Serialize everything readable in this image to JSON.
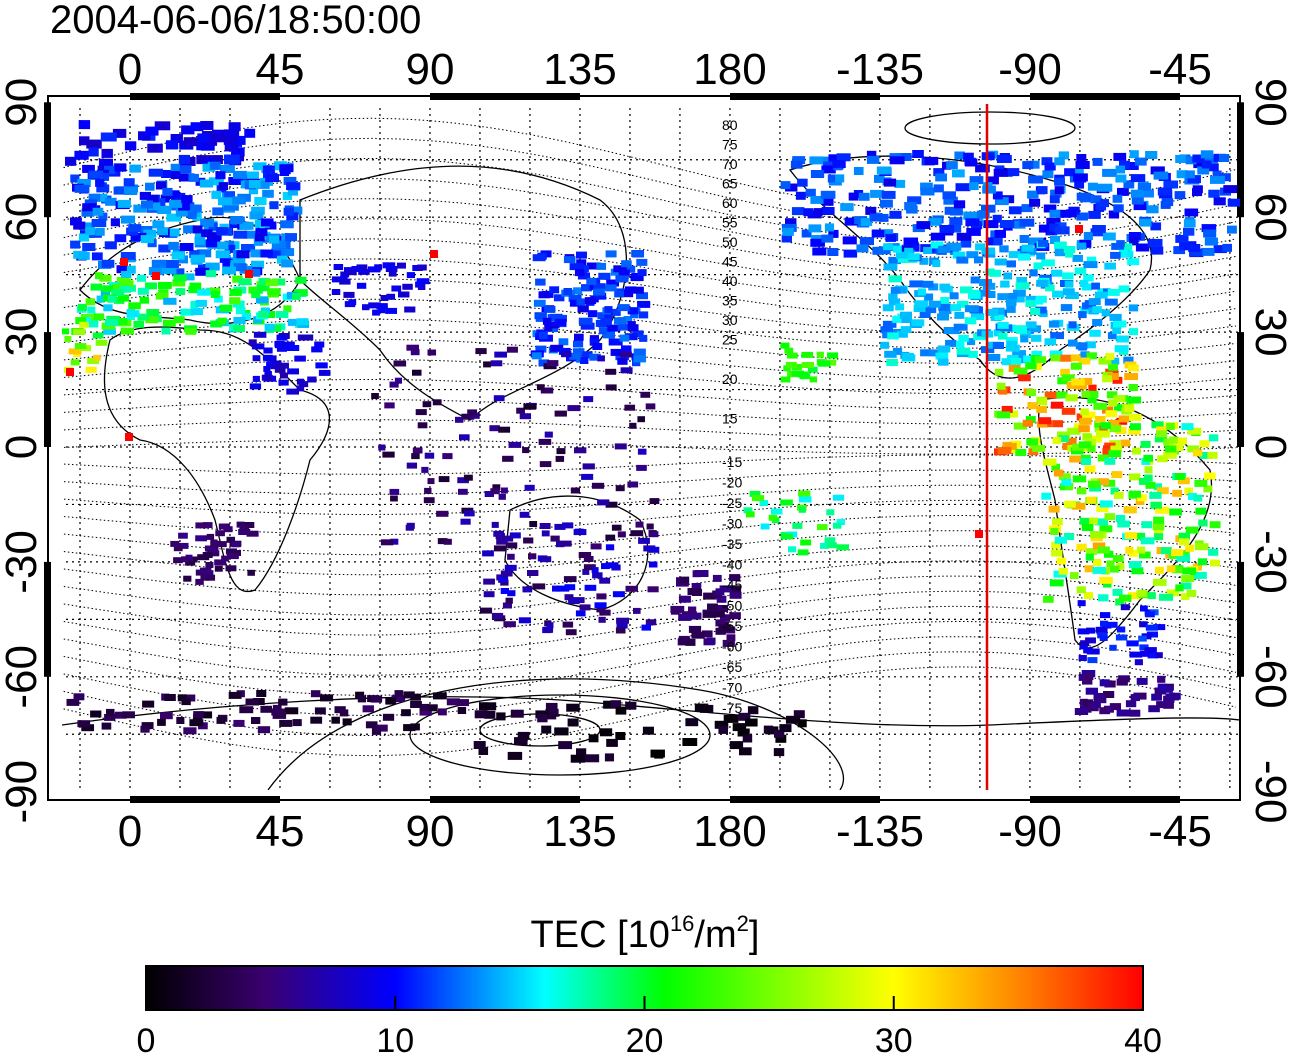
{
  "timestamp": "2004-06-06/18:50:00",
  "map": {
    "top_lon_ticks": [
      "0",
      "45",
      "90",
      "135",
      "180",
      "-135",
      "-90",
      "-45"
    ],
    "bottom_lon_ticks": [
      "0",
      "45",
      "90",
      "135",
      "180",
      "-135",
      "-90",
      "-45"
    ],
    "lat_ticks": [
      "90",
      "60",
      "30",
      "0",
      "-30",
      "-60",
      "-90"
    ],
    "contour_labels_north": [
      "80",
      "75",
      "70",
      "65",
      "60",
      "55",
      "50",
      "45",
      "40",
      "35",
      "30",
      "25",
      "20",
      "15"
    ],
    "contour_labels_south": [
      "-15",
      "-20",
      "-25",
      "-30",
      "-35",
      "-40",
      "-45",
      "-50",
      "-55",
      "-60",
      "-65",
      "-70",
      "-75"
    ],
    "marker_line_color": "#e00000"
  },
  "colorbar": {
    "title_prefix": "TEC  [10",
    "title_exp": "16",
    "title_mid": "/m",
    "title_exp2": "2",
    "title_suffix": "]",
    "ticks": [
      "0",
      "10",
      "20",
      "30",
      "40"
    ],
    "colors": [
      "#000000",
      "#3a0070",
      "#0000ff",
      "#00ffff",
      "#00ff00",
      "#ffff00",
      "#ff0000"
    ]
  }
}
